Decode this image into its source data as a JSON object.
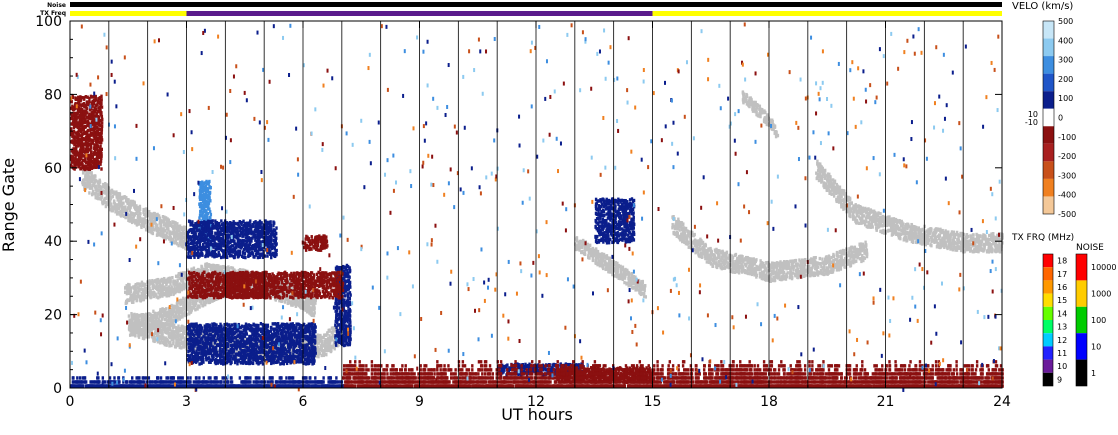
{
  "status_bars": {
    "noise_label": "Noise",
    "txfreq_label": "TX Freq",
    "noise_color": "#000000",
    "txfreq_segments": [
      {
        "start": 0,
        "end": 3,
        "color": "#ffff00"
      },
      {
        "start": 3,
        "end": 15,
        "color": "#5a1b8c"
      },
      {
        "start": 15,
        "end": 24,
        "color": "#ffff00"
      }
    ]
  },
  "chart_data": {
    "type": "heatmap",
    "xlabel": "UT hours",
    "ylabel": "Range Gate",
    "xlim": [
      0,
      24
    ],
    "ylim": [
      0,
      100
    ],
    "x_ticks": [
      "0",
      "3",
      "6",
      "9",
      "12",
      "15",
      "18",
      "21",
      "24"
    ],
    "y_ticks": [
      "0",
      "20",
      "40",
      "60",
      "80",
      "100"
    ],
    "scan_boundaries_ut": [
      1.0,
      2.0,
      3.0,
      4.0,
      5.0,
      6.0,
      7.0,
      8.0,
      9.0,
      10.0,
      11.0,
      12.0,
      13.0,
      14.0,
      15.0,
      16.0,
      17.0,
      18.0,
      19.0,
      20.0,
      21.0,
      22.0,
      23.0
    ],
    "velocity_colorbar": {
      "title": "VELO (km/s)",
      "ticks": [
        "500",
        "400",
        "300",
        "200",
        "100",
        "0",
        "-100",
        "-200",
        "-300",
        "-400",
        "-500"
      ],
      "side_labels": [
        "10",
        "-10"
      ],
      "colors": [
        "#c7e6f7",
        "#8ccaf0",
        "#3d8ee0",
        "#1f55c8",
        "#0b1e8c",
        "#ffffff",
        "#8b1010",
        "#a81f1f",
        "#c8501a",
        "#f08020",
        "#f4c898"
      ]
    },
    "txfreq_colorbar": {
      "title": "TX FRQ (MHz)",
      "ticks": [
        "18",
        "17",
        "16",
        "15",
        "14",
        "13",
        "12",
        "11",
        "10",
        "9"
      ],
      "colors": [
        "#ff0000",
        "#ff6600",
        "#ff9900",
        "#ffdd00",
        "#66ff00",
        "#00ff66",
        "#00ccff",
        "#2222ff",
        "#6a1b9a",
        "#000000"
      ]
    },
    "noise_colorbar": {
      "title": "NOISE",
      "ticks": [
        "10000",
        "1000",
        "100",
        "10",
        "1"
      ],
      "colors": [
        "#ff0000",
        "#ffcc00",
        "#00cc00",
        "#0000ff",
        "#000000"
      ]
    },
    "ground_scatter_color": "#c0c0c0",
    "features": [
      {
        "kind": "ground_scatter",
        "points": [
          [
            0.3,
            58
          ],
          [
            1.0,
            52
          ],
          [
            2.0,
            46
          ],
          [
            3.0,
            41
          ]
        ],
        "spread": 3
      },
      {
        "kind": "ground_scatter",
        "points": [
          [
            1.4,
            26
          ],
          [
            2.5,
            28
          ],
          [
            3.5,
            32
          ],
          [
            4.5,
            30
          ],
          [
            5.5,
            26
          ],
          [
            6.2,
            24
          ]
        ],
        "spread": 2.5
      },
      {
        "kind": "ground_scatter",
        "points": [
          [
            1.5,
            18
          ],
          [
            2.5,
            15
          ],
          [
            3.5,
            13
          ],
          [
            5.0,
            11
          ],
          [
            6.5,
            12
          ],
          [
            7.0,
            16
          ]
        ],
        "spread": 3
      },
      {
        "kind": "ground_scatter",
        "points": [
          [
            13.0,
            40
          ],
          [
            14.0,
            33
          ],
          [
            14.8,
            27
          ]
        ],
        "spread": 2
      },
      {
        "kind": "ground_scatter",
        "points": [
          [
            15.5,
            45
          ],
          [
            16.5,
            36
          ],
          [
            18.0,
            32
          ],
          [
            19.5,
            34
          ],
          [
            20.5,
            38
          ]
        ],
        "spread": 2.5
      },
      {
        "kind": "ground_scatter",
        "points": [
          [
            19.2,
            60
          ],
          [
            20.2,
            48
          ],
          [
            21.5,
            43
          ],
          [
            23.0,
            40
          ],
          [
            24.0,
            40
          ]
        ],
        "spread": 2.5
      },
      {
        "kind": "ground_scatter",
        "points": [
          [
            1.5,
            17
          ],
          [
            2.5,
            20
          ],
          [
            3.5,
            26
          ],
          [
            4.5,
            30
          ],
          [
            5.5,
            28
          ],
          [
            6.3,
            22
          ]
        ],
        "spread": 2.5
      },
      {
        "kind": "ground_scatter",
        "points": [
          [
            17.3,
            80
          ],
          [
            17.8,
            75
          ],
          [
            18.2,
            70
          ]
        ],
        "spread": 1.5
      },
      {
        "kind": "velocity_patch",
        "ut": [
          3.3,
          3.6
        ],
        "gates": [
          40,
          57
        ],
        "color": "#3d8ee0"
      },
      {
        "kind": "velocity_patch",
        "ut": [
          3.0,
          5.3
        ],
        "gates": [
          36,
          46
        ],
        "color": "#0b1e8c"
      },
      {
        "kind": "velocity_patch",
        "ut": [
          3.0,
          6.3
        ],
        "gates": [
          7,
          18
        ],
        "color": "#0b1e8c"
      },
      {
        "kind": "velocity_patch",
        "ut": [
          6.8,
          7.2
        ],
        "gates": [
          12,
          34
        ],
        "color": "#0b1e8c"
      },
      {
        "kind": "velocity_patch",
        "ut": [
          4.0,
          7.0
        ],
        "gates": [
          25,
          32
        ],
        "color": "#8b1010"
      },
      {
        "kind": "velocity_patch",
        "ut": [
          3.0,
          5.0
        ],
        "gates": [
          25,
          32
        ],
        "color": "#8b1010"
      },
      {
        "kind": "velocity_patch",
        "ut": [
          6.0,
          6.6
        ],
        "gates": [
          38,
          42
        ],
        "color": "#8b1010"
      },
      {
        "kind": "velocity_patch",
        "ut": [
          11.0,
          13.2
        ],
        "gates": [
          4,
          7
        ],
        "color": "#0b1e8c"
      },
      {
        "kind": "velocity_patch",
        "ut": [
          12.5,
          15.0
        ],
        "gates": [
          2,
          6
        ],
        "color": "#8b1010"
      },
      {
        "kind": "velocity_patch",
        "ut": [
          0.0,
          0.8
        ],
        "gates": [
          60,
          80
        ],
        "color": "#8b1010"
      },
      {
        "kind": "velocity_patch",
        "ut": [
          13.5,
          14.5
        ],
        "gates": [
          40,
          52
        ],
        "color": "#0b1e8c"
      },
      {
        "kind": "velocity_band",
        "ut": [
          7.0,
          24.0
        ],
        "gates": [
          0,
          7
        ],
        "color": "#8b1010"
      },
      {
        "kind": "velocity_band",
        "ut": [
          0.0,
          7.0
        ],
        "gates": [
          0,
          3
        ],
        "color": "#0b1e8c"
      },
      {
        "kind": "velocity_noise",
        "ut": [
          0.0,
          24.0
        ],
        "gates": [
          0,
          100
        ],
        "colors": [
          "#0b1e8c",
          "#8b1010",
          "#8ccaf0",
          "#f08020",
          "#c8501a",
          "#3d8ee0"
        ]
      }
    ]
  }
}
